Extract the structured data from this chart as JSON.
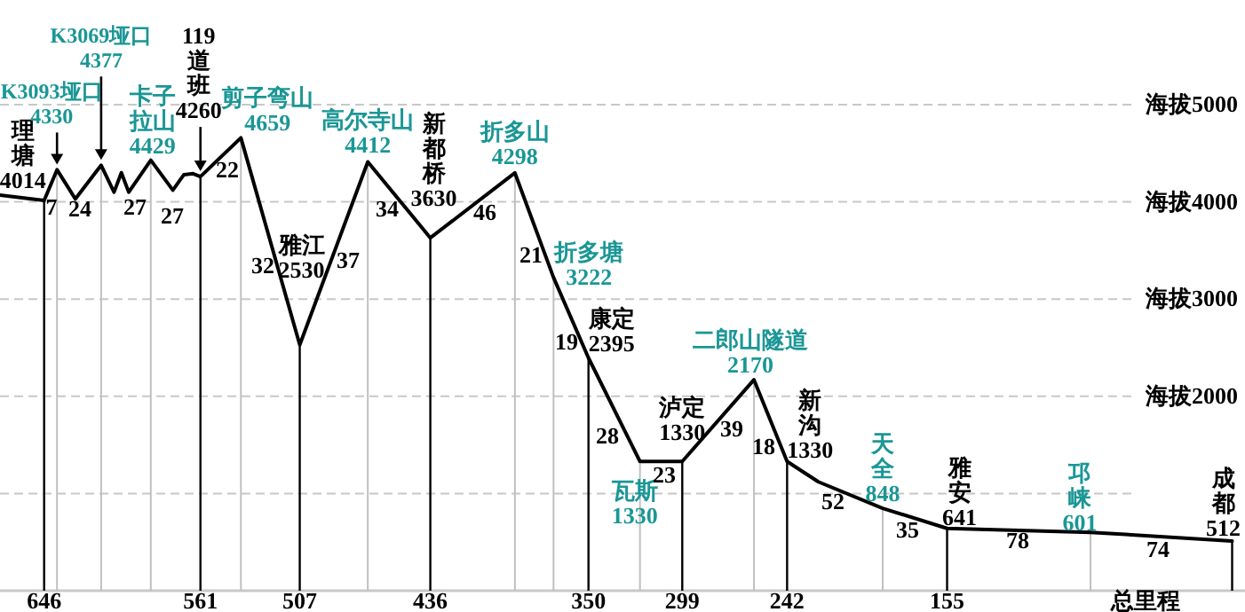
{
  "chart_data": {
    "type": "line",
    "x": [
      670,
      646,
      639,
      629,
      615,
      608,
      604,
      600,
      588,
      576,
      570,
      565,
      561,
      539,
      507,
      470,
      436,
      390,
      369,
      350,
      322,
      299,
      260,
      242,
      225,
      190,
      155,
      77,
      0
    ],
    "series": [
      {
        "color": "#000000",
        "values": [
          4070,
          4014,
          4330,
          4030,
          4377,
          4100,
          4300,
          4100,
          4429,
          4120,
          4280,
          4290,
          4260,
          4659,
          2530,
          4412,
          3630,
          4298,
          3222,
          2395,
          1330,
          1330,
          2170,
          1330,
          1120,
          848,
          641,
          601,
          512
        ]
      }
    ],
    "xlim": [
      670,
      -7
    ],
    "ylim": [
      0,
      5000
    ],
    "xticks": [
      646,
      561,
      507,
      436,
      350,
      299,
      242,
      155
    ],
    "yticks": [
      {
        "value": 1000,
        "label": null
      },
      2000,
      3000,
      4000,
      5000
    ],
    "ylabel": "海拔",
    "xlabel": "总里程",
    "grid": true,
    "line_style": "solid",
    "annotations": [
      {
        "text": "理塘\n4014",
        "x": 646,
        "y": 4014
      },
      {
        "text": "K3093垭口\n4330",
        "x": 639,
        "y": 4330
      },
      {
        "text": "K3069垭口\n4377",
        "x": 615,
        "y": 4377
      },
      {
        "text": "卡子拉山\n4429",
        "x": 588,
        "y": 4429
      },
      {
        "text": "119道班\n4260",
        "x": 561,
        "y": 4260
      },
      {
        "text": "剪子弯山\n4659",
        "x": 539,
        "y": 4659
      },
      {
        "text": "雅江\n2530",
        "x": 507,
        "y": 2530
      },
      {
        "text": "高尔寺山\n4412",
        "x": 470,
        "y": 4412
      },
      {
        "text": "新都桥\n3630",
        "x": 436,
        "y": 3630
      },
      {
        "text": "折多山\n4298",
        "x": 390,
        "y": 4298
      },
      {
        "text": "折多塘\n3222",
        "x": 369,
        "y": 3222
      },
      {
        "text": "康定\n2395",
        "x": 350,
        "y": 2395
      },
      {
        "text": "瓦斯\n1330",
        "x": 322,
        "y": 1330
      },
      {
        "text": "泸定\n1330",
        "x": 299,
        "y": 1330
      },
      {
        "text": "二郎山隧道\n2170",
        "x": 260,
        "y": 2170
      },
      {
        "text": "新沟\n1330",
        "x": 242,
        "y": 1330
      },
      {
        "text": "天全\n848",
        "x": 190,
        "y": 848
      },
      {
        "text": "雅安\n641",
        "x": 155,
        "y": 641
      },
      {
        "text": "邛崃\n601",
        "x": 77,
        "y": 601
      },
      {
        "text": "成都\n512",
        "x": 0,
        "y": 512
      },
      "7",
      "24",
      "27",
      "27",
      "22",
      "32",
      "37",
      "34",
      "46",
      "21",
      "19",
      "28",
      "23",
      "39",
      "18",
      "52",
      "35",
      "78",
      "74"
    ]
  }
}
